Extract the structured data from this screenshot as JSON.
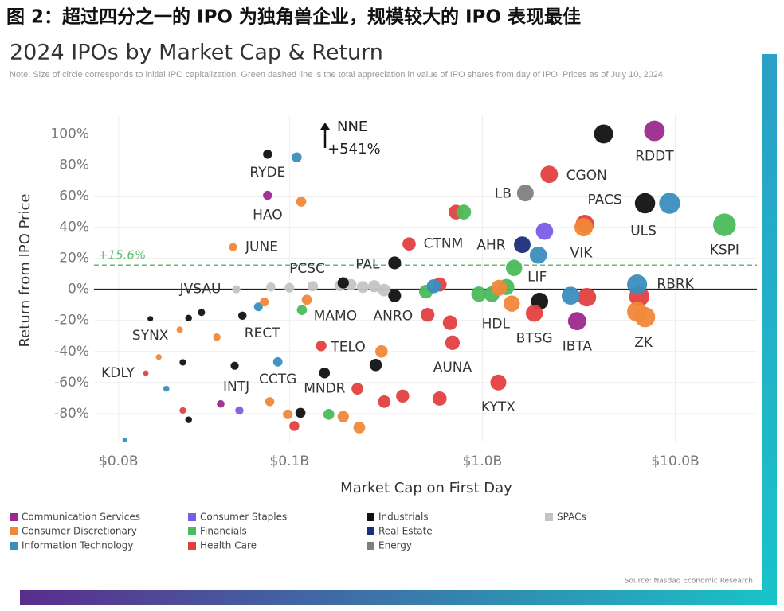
{
  "header": {
    "title": "图 2：超过四分之一的 IPO 为独角兽企业，规模较大的 IPO 表现最佳"
  },
  "chart_data": {
    "type": "bubble",
    "title": "2024 IPOs by Market Cap & Return",
    "subtitle": "Note: Size of circle corresponds to initial IPO capitalization. Green dashed line is the total appreciation in value of IPO shares from day of IPO. Prices as of July 10, 2024.",
    "x_label": "Market Cap on First Day",
    "y_label": "Return from IPO Price",
    "source": "Source: Nasdaq Economic Research",
    "x_log": true,
    "grid": true,
    "xlim": [
      0.0097,
      26.5
    ],
    "xticks": [
      {
        "value": 0.013,
        "label": "$0.0B"
      },
      {
        "value": 0.1,
        "label": "$0.1B"
      },
      {
        "value": 1,
        "label": "$1.0B"
      },
      {
        "value": 10,
        "label": "$10.0B"
      }
    ],
    "ylim": [
      -98,
      112
    ],
    "yticks": [
      {
        "value": -80,
        "label": "-80%"
      },
      {
        "value": -60,
        "label": "-60%"
      },
      {
        "value": -40,
        "label": "-40%"
      },
      {
        "value": -20,
        "label": "-20%"
      },
      {
        "value": 0,
        "label": "0%"
      },
      {
        "value": 20,
        "label": "20%"
      },
      {
        "value": 40,
        "label": "40%"
      },
      {
        "value": 60,
        "label": "60%"
      },
      {
        "value": 80,
        "label": "80%"
      },
      {
        "value": 100,
        "label": "100%"
      }
    ],
    "reference_line": {
      "value": 15.6,
      "label": "+15.6%",
      "color": "#5cbf6a"
    },
    "annotations": [
      {
        "text": "NNE"
      },
      {
        "text": "+541%"
      }
    ],
    "series": [
      {
        "name": "Communication Services",
        "color": "#9c2a8e",
        "x": [
          7.8,
          3.1,
          0.077,
          0.044
        ],
        "values": [
          102,
          -20.5,
          60.5,
          -73.8
        ],
        "labels": [
          "RDDT",
          "IBTA",
          "HAO",
          null
        ]
      },
      {
        "name": "Consumer Discretionary",
        "color": "#f0883a",
        "x": [
          3.35,
          6.34,
          6.97,
          1.42,
          1.22,
          0.3,
          0.123,
          0.19,
          0.23,
          0.098,
          0.079,
          0.074,
          0.042,
          0.027,
          0.021,
          0.115,
          0.051
        ],
        "values": [
          40,
          -14.4,
          -17.9,
          -9.2,
          1,
          -40,
          -6.7,
          -82,
          -89,
          -80.5,
          -72.3,
          -8.2,
          -30.8,
          -26,
          -43.6,
          56.4,
          27.2
        ],
        "labels": [
          "VIK",
          "ZK",
          null,
          "HDL",
          null,
          null,
          null,
          null,
          null,
          null,
          null,
          null,
          null,
          null,
          null,
          null,
          "JUNE"
        ]
      },
      {
        "name": "Information Technology",
        "color": "#3a8dbd",
        "x": [
          9.35,
          1.95,
          2.87,
          6.34,
          0.56,
          0.087,
          0.069,
          0.023,
          0.014,
          0.109
        ],
        "values": [
          55.4,
          22,
          -4.1,
          3.1,
          2,
          -46.7,
          -11.3,
          -64,
          -97,
          85
        ],
        "labels": [
          null,
          null,
          null,
          "RBRK",
          null,
          "CCTG",
          null,
          null,
          null,
          null
        ]
      },
      {
        "name": "Consumer Staples",
        "color": "#7b5ce6",
        "x": [
          2.1,
          0.055
        ],
        "values": [
          37.4,
          -78
        ],
        "labels": [
          null,
          null
        ]
      },
      {
        "name": "Financials",
        "color": "#4cbb5b",
        "x": [
          18,
          1.46,
          0.8,
          1.33,
          1.12,
          0.96,
          0.51,
          0.116,
          0.16
        ],
        "values": [
          41.5,
          13.8,
          49.7,
          1.5,
          -3.1,
          -3.1,
          -1.5,
          -13.3,
          -80.5
        ],
        "labels": [
          "KSPI",
          "LIF",
          null,
          null,
          null,
          null,
          null,
          "MAMO",
          null
        ]
      },
      {
        "name": "Health Care",
        "color": "#e2403f",
        "x": [
          2.22,
          3.4,
          0.417,
          0.73,
          1.86,
          3.48,
          6.5,
          0.6,
          0.52,
          0.7,
          0.68,
          1.21,
          0.6,
          0.386,
          0.31,
          0.146,
          0.225,
          0.106,
          0.018,
          0.028
        ],
        "values": [
          74,
          42,
          29.2,
          49.7,
          -15.4,
          -5.1,
          -4.6,
          3.1,
          -16.4,
          -34.4,
          -21.5,
          -60,
          -70.3,
          -68.7,
          -72.3,
          -36.4,
          -64,
          -88,
          -54,
          -78
        ],
        "labels": [
          "CGON",
          "PACS",
          "CTNM",
          null,
          "BTSG",
          null,
          null,
          null,
          null,
          "AUNA",
          null,
          "KYTX",
          null,
          null,
          null,
          "TELO",
          null,
          null,
          "KDLY",
          null
        ]
      },
      {
        "name": "Industrials",
        "color": "#111111",
        "x": [
          4.25,
          6.97,
          0.351,
          1.98,
          0.351,
          0.19,
          0.28,
          0.152,
          0.114,
          0.052,
          0.057,
          0.035,
          0.03,
          0.019,
          0.028,
          0.03,
          0.077
        ],
        "values": [
          100,
          55.4,
          17,
          -7.7,
          -4.1,
          4.1,
          -48.7,
          -53.8,
          -79.5,
          -49.2,
          -17,
          -14.9,
          -18.5,
          -19,
          -47,
          -84,
          87
        ],
        "labels": [
          null,
          "ULS",
          "PAL",
          null,
          "ANRO",
          null,
          null,
          "MNDR",
          null,
          "INTJ",
          "RECT",
          null,
          null,
          "SYNX",
          null,
          null,
          "RYDE"
        ]
      },
      {
        "name": "Real Estate",
        "color": "#1b2e78",
        "x": [
          1.61
        ],
        "values": [
          28.7
        ],
        "labels": [
          "AHR"
        ]
      },
      {
        "name": "Energy",
        "color": "#7f7f7f",
        "x": [
          1.67
        ],
        "values": [
          62
        ],
        "labels": [
          "LB"
        ]
      },
      {
        "name": "SPACs",
        "color": "#c4c4c4",
        "x": [
          0.053,
          0.08,
          0.1,
          0.132,
          0.183,
          0.208,
          0.24,
          0.275,
          0.31
        ],
        "values": [
          0,
          1.5,
          1,
          2,
          2.5,
          3,
          1.5,
          2,
          -0.5
        ],
        "labels": [
          "JVSAU",
          null,
          null,
          "PCSC",
          null,
          null,
          null,
          null,
          null
        ]
      }
    ]
  }
}
